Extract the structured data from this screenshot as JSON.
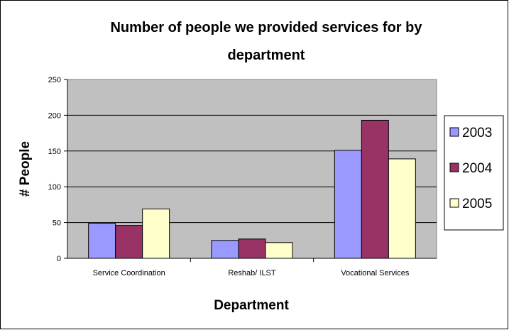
{
  "chart_data": {
    "type": "bar",
    "title_lines": [
      "Number of people we provided services for by",
      "department"
    ],
    "xlabel": "Department",
    "ylabel": "# People",
    "categories": [
      "Service Coordination",
      "Reshab/ ILST",
      "Vocational Services"
    ],
    "series": [
      {
        "name": "2003",
        "color": "#9999ff",
        "values": [
          49,
          25,
          151
        ]
      },
      {
        "name": "2004",
        "color": "#993366",
        "values": [
          46,
          27,
          193
        ]
      },
      {
        "name": "2005",
        "color": "#ffffcc",
        "values": [
          69,
          22,
          139
        ]
      }
    ],
    "ylim": [
      0,
      250
    ],
    "yticks": [
      0,
      50,
      100,
      150,
      200,
      250
    ],
    "grid": true,
    "legend_position": "right",
    "plot_background": "#c0c0c0"
  }
}
